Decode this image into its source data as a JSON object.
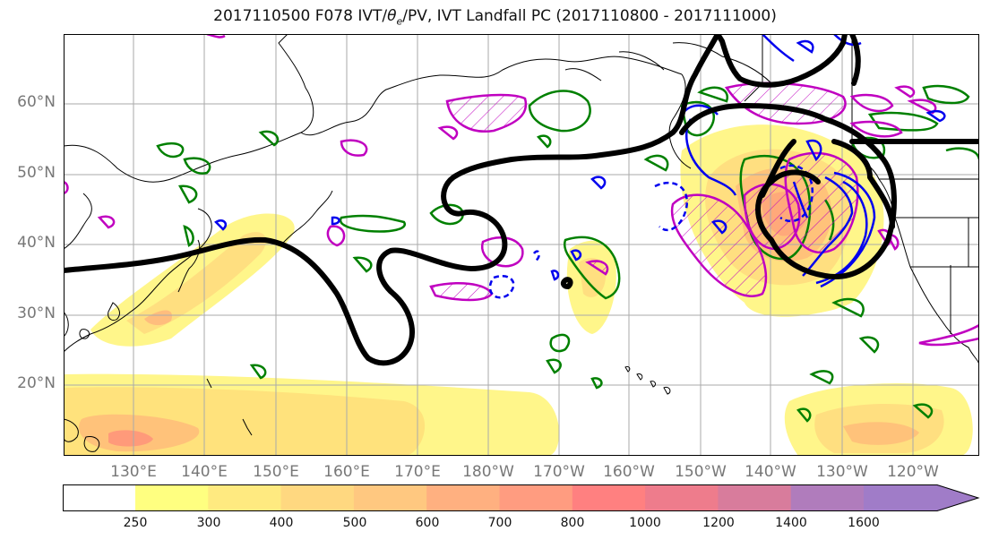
{
  "title": "2017110500 F078 IVT/θe/PV, IVT Landfall PC (2017110800 - 2017111000)",
  "title_parts": {
    "prefix": "2017110500 F078 IVT/",
    "theta": "θ",
    "sub": "e",
    "suffix": "/PV, IVT Landfall PC (2017110800 - 2017111000)"
  },
  "lat_labels": [
    "60°N",
    "50°N",
    "40°N",
    "30°N",
    "20°N"
  ],
  "lon_labels": [
    "130°E",
    "140°E",
    "150°E",
    "160°E",
    "170°E",
    "180°W",
    "170°W",
    "160°W",
    "150°W",
    "140°W",
    "130°W",
    "120°W"
  ],
  "colorbar": {
    "levels": [
      "250",
      "300",
      "400",
      "500",
      "600",
      "700",
      "800",
      "1000",
      "1200",
      "1400",
      "1600"
    ],
    "colors": [
      "#ffff80",
      "#ffea80",
      "#ffd880",
      "#ffc880",
      "#ffb080",
      "#ff9c80",
      "#ff8080",
      "#ee7c8c",
      "#d87c9c",
      "#b07cbc",
      "#a07cc8"
    ]
  },
  "colors": {
    "ivt_light": "#fff68a",
    "ivt_mid": "#ffd27a",
    "ivt_high": "#ff9a7a",
    "pv_contour": "#000000",
    "theta_e_pos": "#0000ee",
    "green_contour": "#008000",
    "magenta_contour": "#c000c0"
  },
  "legend": null
}
